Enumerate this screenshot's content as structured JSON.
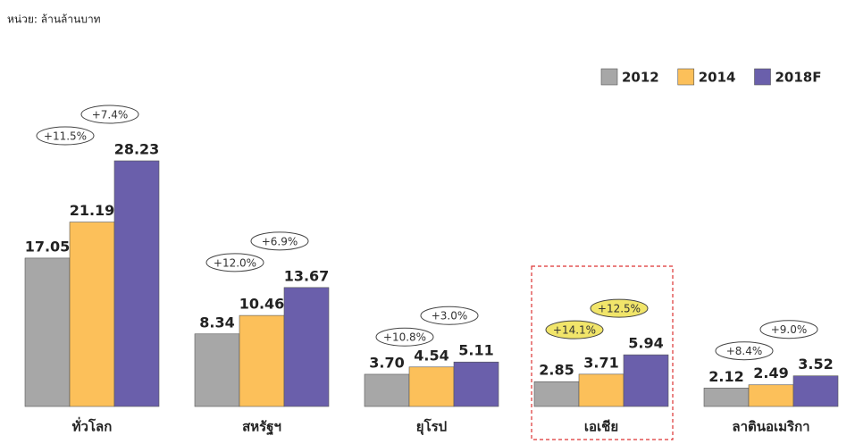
{
  "chart_data": {
    "type": "bar",
    "subtitle": "หน่วย: ล้านล้านบาท",
    "categories": [
      "ทั่วโลก",
      "สหรัฐฯ",
      "ยุโรป",
      "เอเชีย",
      "ลาตินอเมริกา"
    ],
    "series": [
      {
        "name": "2012",
        "color": "#a7a7a7",
        "values": [
          17.05,
          8.34,
          3.7,
          2.85,
          2.12
        ],
        "value_labels": [
          "17.05",
          "8.34",
          "3.70",
          "2.85",
          "2.12"
        ]
      },
      {
        "name": "2014",
        "color": "#fcc05a",
        "values": [
          21.19,
          10.46,
          4.54,
          3.71,
          2.49
        ],
        "value_labels": [
          "21.19",
          "10.46",
          "4.54",
          "3.71",
          "2.49"
        ]
      },
      {
        "name": "2018F",
        "color": "#6a5fab",
        "values": [
          28.23,
          13.67,
          5.11,
          5.94,
          3.52
        ],
        "value_labels": [
          "28.23",
          "13.67",
          "5.11",
          "5.94",
          "3.52"
        ]
      }
    ],
    "annotations": [
      [
        "+11.5%",
        "+7.4%"
      ],
      [
        "+12.0%",
        "+6.9%"
      ],
      [
        "+10.8%",
        "+3.0%"
      ],
      [
        "+14.1%",
        "+12.5%"
      ],
      [
        "+8.4%",
        "+9.0%"
      ]
    ],
    "legend": "top-right"
  }
}
